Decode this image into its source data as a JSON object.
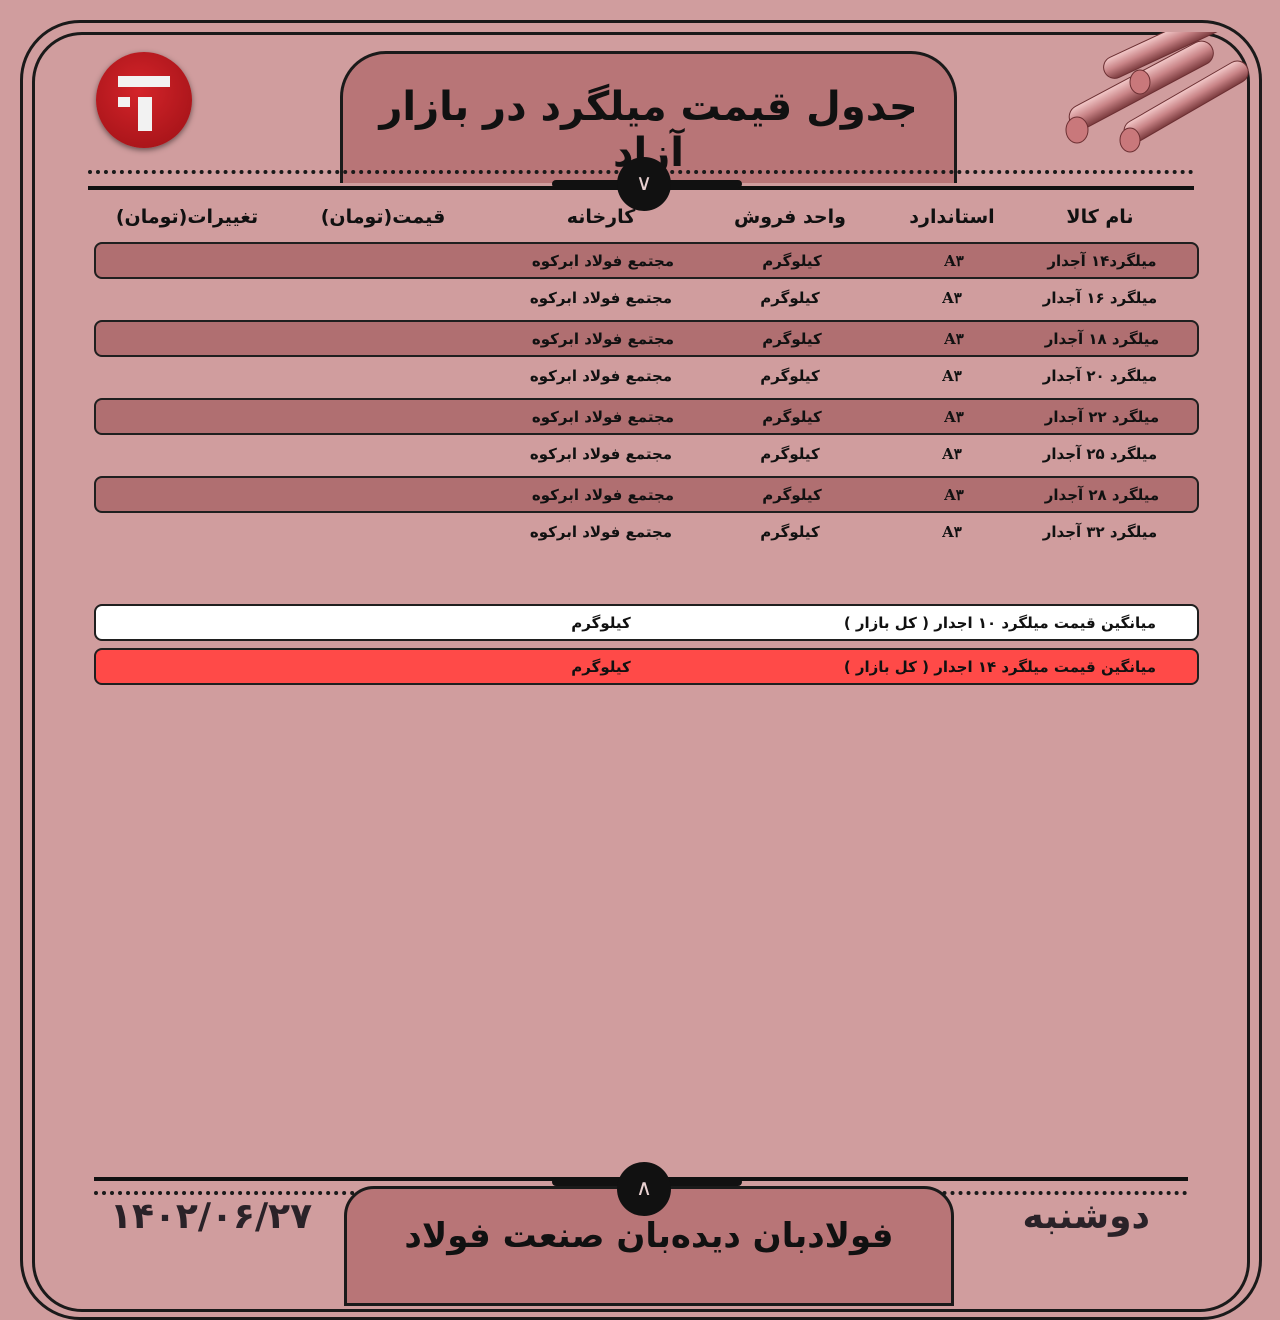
{
  "header": {
    "title": "جدول قیمت میلگرد در بازار آزاد",
    "toggle_icon": "chevron-down-icon"
  },
  "columns": [
    "نام کالا",
    "استاندارد",
    "واحد فروش",
    "کارخانه",
    "قیمت(تومان)",
    "تغییرات(تومان)"
  ],
  "rows": [
    {
      "name": "میلگرد۱۴ آجدار",
      "standard": "A۳",
      "unit": "کیلوگرم",
      "factory": "مجتمع فولاد ابرکوه",
      "price": "",
      "change": ""
    },
    {
      "name": "میلگرد ۱۶ آجدار",
      "standard": "A۳",
      "unit": "کیلوگرم",
      "factory": "مجتمع فولاد ابرکوه",
      "price": "",
      "change": ""
    },
    {
      "name": "میلگرد ۱۸ آجدار",
      "standard": "A۳",
      "unit": "کیلوگرم",
      "factory": "مجتمع فولاد ابرکوه",
      "price": "",
      "change": ""
    },
    {
      "name": "میلگرد ۲۰ آجدار",
      "standard": "A۳",
      "unit": "کیلوگرم",
      "factory": "مجتمع فولاد ابرکوه",
      "price": "",
      "change": ""
    },
    {
      "name": "میلگرد ۲۲ آجدار",
      "standard": "A۳",
      "unit": "کیلوگرم",
      "factory": "مجتمع فولاد ابرکوه",
      "price": "",
      "change": ""
    },
    {
      "name": "میلگرد ۲۵ آجدار",
      "standard": "A۳",
      "unit": "کیلوگرم",
      "factory": "مجتمع فولاد ابرکوه",
      "price": "",
      "change": ""
    },
    {
      "name": "میلگرد ۲۸ آجدار",
      "standard": "A۳",
      "unit": "کیلوگرم",
      "factory": "مجتمع فولاد ابرکوه",
      "price": "",
      "change": ""
    },
    {
      "name": "میلگرد ۳۲ آجدار",
      "standard": "A۳",
      "unit": "کیلوگرم",
      "factory": "مجتمع فولاد ابرکوه",
      "price": "",
      "change": ""
    }
  ],
  "averages": [
    {
      "label": "میانگین قیمت میلگرد ۱۰ اجدار ( کل بازار )",
      "unit": "کیلوگرم",
      "color": "#ffffff"
    },
    {
      "label": "میانگین قیمت میلگرد ۱۴ اجدار ( کل بازار )",
      "unit": "کیلوگرم",
      "color": "#ff4a48"
    }
  ],
  "footer": {
    "title": "فولادبان دیده‌بان صنعت فولاد",
    "date": "۱۴۰۲/۰۶/۲۷",
    "day": "دوشنبه",
    "toggle_icon": "chevron-up-icon"
  },
  "colors": {
    "background": "#d09d9e",
    "dark_row": "#b06f71",
    "brand_red": "#c4181e"
  }
}
